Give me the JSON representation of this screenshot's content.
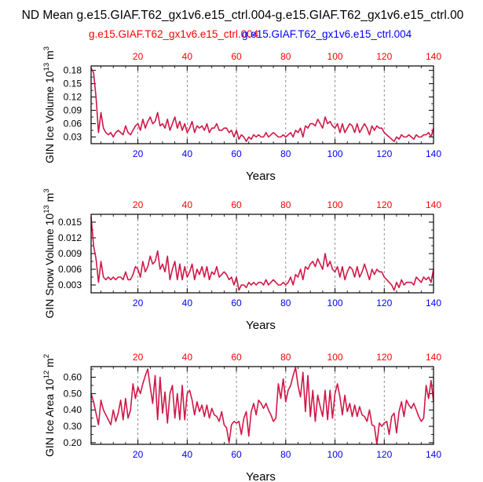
{
  "title": "ND Mean g.e15.GIAF.T62_gx1v6.e15_ctrl.004-g.e15.GIAF.T62_gx1v6.e15_ctrl.00",
  "legend": {
    "red": "g.e15.GIAF.T62_gx1v6.e15_ctrl.004",
    "blue": "g.e15.GIAF.T62_gx1v6.e15_ctrl.004"
  },
  "colors": {
    "red": "#ff0000",
    "blue": "#0000ff",
    "line": "#d01848",
    "grid": "#777777",
    "axis": "#000000"
  },
  "chart_data": [
    {
      "type": "line",
      "title": "",
      "xlabel": "Years",
      "ylabel": "GIN Ice Volume 10^13 m^3",
      "ylabel_main": "GIN Ice Volume 10",
      "ylabel_exp": "13",
      "ylabel_unit": "m",
      "ylabel_unit_exp": "3",
      "xlim": [
        1,
        140
      ],
      "ylim": [
        0.015,
        0.19
      ],
      "x_ticks": [
        20,
        40,
        60,
        80,
        100,
        120,
        140
      ],
      "y_ticks": [
        0.03,
        0.06,
        0.09,
        0.12,
        0.15,
        0.18
      ],
      "y_tick_labels": [
        "0.03",
        "0.06",
        "0.09",
        "0.12",
        "0.15",
        "0.18"
      ],
      "x_tick_labels": [
        "20",
        "40",
        "60",
        "80",
        "100",
        "120",
        "140"
      ],
      "series": [
        {
          "name": "g.e15.GIAF.T62_gx1v6.e15_ctrl.004",
          "color": "#d01848",
          "values": [
            0.185,
            0.175,
            0.12,
            0.04,
            0.085,
            0.05,
            0.04,
            0.035,
            0.04,
            0.03,
            0.04,
            0.045,
            0.04,
            0.035,
            0.055,
            0.04,
            0.035,
            0.045,
            0.055,
            0.06,
            0.045,
            0.07,
            0.05,
            0.065,
            0.075,
            0.06,
            0.065,
            0.085,
            0.055,
            0.06,
            0.05,
            0.07,
            0.045,
            0.06,
            0.075,
            0.05,
            0.065,
            0.045,
            0.06,
            0.04,
            0.05,
            0.065,
            0.04,
            0.055,
            0.05,
            0.055,
            0.045,
            0.06,
            0.04,
            0.05,
            0.05,
            0.06,
            0.045,
            0.045,
            0.05,
            0.05,
            0.04,
            0.045,
            0.03,
            0.045,
            0.025,
            0.035,
            0.03,
            0.02,
            0.03,
            0.025,
            0.035,
            0.03,
            0.035,
            0.03,
            0.03,
            0.04,
            0.03,
            0.035,
            0.04,
            0.035,
            0.03,
            0.03,
            0.035,
            0.03,
            0.035,
            0.04,
            0.03,
            0.045,
            0.04,
            0.05,
            0.03,
            0.055,
            0.05,
            0.06,
            0.06,
            0.055,
            0.07,
            0.06,
            0.05,
            0.075,
            0.06,
            0.065,
            0.055,
            0.05,
            0.06,
            0.04,
            0.06,
            0.04,
            0.05,
            0.06,
            0.055,
            0.04,
            0.06,
            0.04,
            0.05,
            0.06,
            0.05,
            0.035,
            0.055,
            0.045,
            0.055,
            0.05,
            0.05,
            0.04,
            0.035,
            0.03,
            0.025,
            0.02,
            0.03,
            0.025,
            0.035,
            0.03,
            0.03,
            0.035,
            0.03,
            0.025,
            0.035,
            0.03,
            0.03,
            0.035,
            0.035,
            0.04,
            0.03,
            0.05
          ]
        }
      ]
    },
    {
      "type": "line",
      "title": "",
      "xlabel": "Years",
      "ylabel": "GIN Snow Volume 10^13 m^3",
      "ylabel_main": "GIN Snow Volume 10",
      "ylabel_exp": "13",
      "ylabel_unit": "m",
      "ylabel_unit_exp": "3",
      "xlim": [
        1,
        140
      ],
      "ylim": [
        0.0015,
        0.0165
      ],
      "x_ticks": [
        20,
        40,
        60,
        80,
        100,
        120,
        140
      ],
      "y_ticks": [
        0.003,
        0.006,
        0.009,
        0.012,
        0.015
      ],
      "y_tick_labels": [
        "0.003",
        "0.006",
        "0.009",
        "0.012",
        "0.015"
      ],
      "x_tick_labels": [
        "20",
        "40",
        "60",
        "80",
        "100",
        "120",
        "140"
      ],
      "series": [
        {
          "name": "g.e15.GIAF.T62_gx1v6.e15_ctrl.004",
          "color": "#d01848",
          "values": [
            0.016,
            0.0105,
            0.008,
            0.0035,
            0.0075,
            0.0045,
            0.004,
            0.0045,
            0.004,
            0.0045,
            0.004,
            0.0045,
            0.0045,
            0.004,
            0.0055,
            0.004,
            0.004,
            0.005,
            0.0065,
            0.006,
            0.0045,
            0.0075,
            0.0055,
            0.0065,
            0.0085,
            0.007,
            0.0075,
            0.0095,
            0.006,
            0.007,
            0.0055,
            0.0085,
            0.004,
            0.006,
            0.0075,
            0.004,
            0.007,
            0.004,
            0.0065,
            0.0045,
            0.0055,
            0.007,
            0.004,
            0.006,
            0.005,
            0.0065,
            0.0045,
            0.0065,
            0.004,
            0.0055,
            0.005,
            0.0065,
            0.0045,
            0.005,
            0.0055,
            0.005,
            0.004,
            0.0045,
            0.003,
            0.0045,
            0.002,
            0.003,
            0.003,
            0.0025,
            0.0035,
            0.003,
            0.0035,
            0.003,
            0.0035,
            0.0035,
            0.003,
            0.004,
            0.003,
            0.0035,
            0.004,
            0.0035,
            0.003,
            0.003,
            0.0035,
            0.003,
            0.0035,
            0.0045,
            0.003,
            0.005,
            0.0045,
            0.006,
            0.004,
            0.0065,
            0.006,
            0.007,
            0.0075,
            0.0065,
            0.008,
            0.007,
            0.006,
            0.009,
            0.0065,
            0.0075,
            0.006,
            0.0055,
            0.0065,
            0.0045,
            0.0065,
            0.004,
            0.0055,
            0.0065,
            0.006,
            0.0045,
            0.0065,
            0.0045,
            0.0055,
            0.007,
            0.0055,
            0.004,
            0.006,
            0.005,
            0.006,
            0.0055,
            0.0055,
            0.0045,
            0.004,
            0.0035,
            0.003,
            0.002,
            0.0035,
            0.0025,
            0.004,
            0.003,
            0.0035,
            0.0035,
            0.0035,
            0.003,
            0.0045,
            0.004,
            0.0035,
            0.0045,
            0.004,
            0.0045,
            0.0035,
            0.006
          ]
        }
      ]
    },
    {
      "type": "line",
      "title": "",
      "xlabel": "Years",
      "ylabel": "GIN Ice Area 10^12 m^2",
      "ylabel_main": "GIN Ice Area 10",
      "ylabel_exp": "12",
      "ylabel_unit": "m",
      "ylabel_unit_exp": "2",
      "xlim": [
        1,
        140
      ],
      "ylim": [
        0.19,
        0.665
      ],
      "x_ticks": [
        20,
        40,
        60,
        80,
        100,
        120,
        140
      ],
      "y_ticks": [
        0.2,
        0.3,
        0.4,
        0.5,
        0.6
      ],
      "y_tick_labels": [
        "0.20",
        "0.30",
        "0.40",
        "0.50",
        "0.60"
      ],
      "x_tick_labels": [
        "20",
        "40",
        "60",
        "80",
        "100",
        "120",
        "140"
      ],
      "series": [
        {
          "name": "g.e15.GIAF.T62_gx1v6.e15_ctrl.004",
          "color": "#d01848",
          "values": [
            0.5,
            0.45,
            0.38,
            0.31,
            0.46,
            0.4,
            0.37,
            0.34,
            0.31,
            0.4,
            0.33,
            0.38,
            0.46,
            0.34,
            0.47,
            0.35,
            0.4,
            0.56,
            0.47,
            0.54,
            0.5,
            0.56,
            0.61,
            0.65,
            0.54,
            0.44,
            0.61,
            0.34,
            0.6,
            0.38,
            0.51,
            0.32,
            0.5,
            0.55,
            0.35,
            0.5,
            0.34,
            0.55,
            0.34,
            0.5,
            0.52,
            0.46,
            0.37,
            0.45,
            0.39,
            0.43,
            0.36,
            0.43,
            0.35,
            0.41,
            0.37,
            0.36,
            0.33,
            0.39,
            0.31,
            0.29,
            0.2,
            0.31,
            0.33,
            0.32,
            0.33,
            0.25,
            0.35,
            0.39,
            0.24,
            0.39,
            0.44,
            0.37,
            0.46,
            0.44,
            0.41,
            0.44,
            0.4,
            0.37,
            0.33,
            0.35,
            0.56,
            0.47,
            0.59,
            0.45,
            0.52,
            0.55,
            0.61,
            0.66,
            0.55,
            0.48,
            0.63,
            0.39,
            0.61,
            0.36,
            0.52,
            0.33,
            0.49,
            0.42,
            0.36,
            0.52,
            0.34,
            0.52,
            0.35,
            0.5,
            0.56,
            0.48,
            0.37,
            0.49,
            0.39,
            0.44,
            0.36,
            0.43,
            0.36,
            0.42,
            0.37,
            0.36,
            0.33,
            0.4,
            0.31,
            0.3,
            0.19,
            0.32,
            0.3,
            0.32,
            0.33,
            0.25,
            0.36,
            0.38,
            0.26,
            0.39,
            0.45,
            0.36,
            0.46,
            0.43,
            0.41,
            0.44,
            0.4,
            0.36,
            0.33,
            0.35,
            0.55,
            0.47,
            0.58,
            0.45
          ]
        }
      ]
    }
  ]
}
